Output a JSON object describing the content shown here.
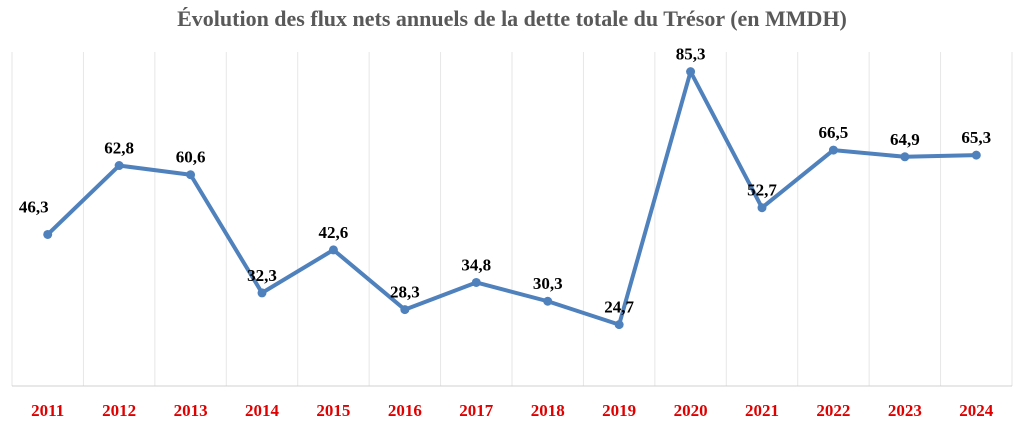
{
  "chart_data": {
    "type": "line",
    "title": "Évolution des flux nets annuels de la dette totale du Trésor (en MMDH)",
    "categories": [
      "2011",
      "2012",
      "2013",
      "2014",
      "2015",
      "2016",
      "2017",
      "2018",
      "2019",
      "2020",
      "2021",
      "2022",
      "2023",
      "2024"
    ],
    "values": [
      46.3,
      62.8,
      60.6,
      32.3,
      42.6,
      28.3,
      34.8,
      30.3,
      24.7,
      85.3,
      52.7,
      66.5,
      64.9,
      65.3
    ],
    "data_labels": [
      "46,3",
      "62,8",
      "60,6",
      "32,3",
      "42,6",
      "28,3",
      "34,8",
      "30,3",
      "24,7",
      "85,3",
      "52,7",
      "66,5",
      "64,9",
      "65,3"
    ],
    "ylim": [
      10,
      90
    ],
    "grid": "vertical",
    "legend": "none",
    "colors": {
      "line": "#4f81bd",
      "tick_labels": "#e00000",
      "data_labels": "#000000",
      "title": "#595959",
      "grid": "#e6e6e6"
    }
  }
}
